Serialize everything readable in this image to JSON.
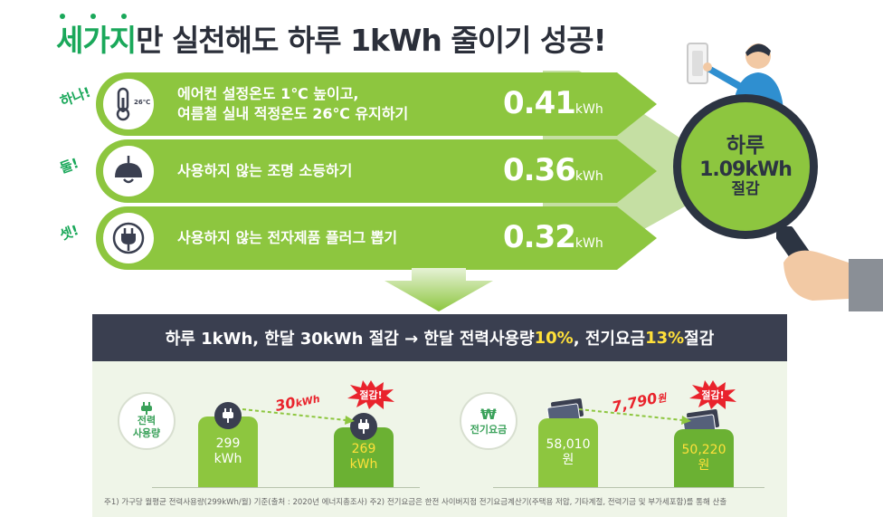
{
  "title": {
    "highlight": "세가지",
    "rest": "만 실천해도 하루 1kWh 줄이기 성공!"
  },
  "items": [
    {
      "label": "하나!",
      "desc_line1": "에어컨 설정온도 1℃ 높이고,",
      "desc_line2": "여름철 실내 적정온도 26℃ 유지하기",
      "value": "0.41",
      "unit": "kWh",
      "icon": "thermometer-icon",
      "icon_text": "26℃"
    },
    {
      "label": "둘!",
      "desc_line1": "사용하지 않는 조명 소등하기",
      "desc_line2": "",
      "value": "0.36",
      "unit": "kWh",
      "icon": "lamp-icon"
    },
    {
      "label": "셋!",
      "desc_line1": "사용하지 않는 전자제품 플러그 뽑기",
      "desc_line2": "",
      "value": "0.32",
      "unit": "kWh",
      "icon": "plug-icon"
    }
  ],
  "result": {
    "line1": "하루",
    "line2": "1.09kWh",
    "line3": "절감"
  },
  "banner": {
    "part1": "하루 1kWh, 한달 30kWh 절감 → 한달 전력사용량 ",
    "pct1": "10%",
    "part2": ", 전기요금 ",
    "pct2": "13%",
    "part3": " 절감"
  },
  "power": {
    "circle_line1": "전력",
    "circle_line2": "사용량",
    "before_value": "299",
    "before_unit": "kWh",
    "after_value": "269",
    "after_unit": "kWh",
    "saving_value": "30",
    "saving_unit": "kWh",
    "burst_label": "절감!"
  },
  "bill": {
    "circle_symbol": "₩",
    "circle_label": "전기요금",
    "before_value": "58,010",
    "before_unit": "원",
    "after_value": "50,220",
    "after_unit": "원",
    "saving_value": "7,790",
    "saving_unit": "원",
    "burst_label": "절감!"
  },
  "notes": "주1) 가구당 월평균 전력사용량(299kWh/월) 기준(출처 : 2020년 에너지총조사)   주2) 전기요금은 한전 사이버지점 전기요금계산기(주택용 저압, 기타계절, 전력기금 및 부가세포함)를 통해 산출",
  "colors": {
    "green": "#8dc63f",
    "dark_green": "#1aa85a",
    "navy": "#3a3f50",
    "yellow": "#ffe03a",
    "red": "#e9232c"
  }
}
